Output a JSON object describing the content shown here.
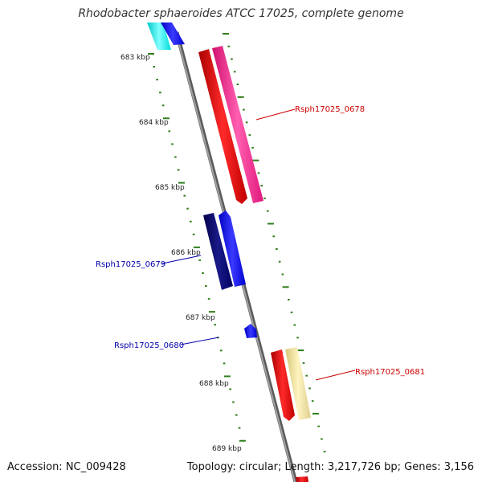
{
  "header": {
    "title": "Rhodobacter sphaeroides ATCC 17025, complete genome"
  },
  "footer": {
    "accession": "Accession: NC_009428",
    "summary": "Topology: circular; Length: 3,217,726 bp; Genes: 3,156"
  },
  "ruler": {
    "tick_labels": [
      "683 kbp",
      "684 kbp",
      "685 kbp",
      "686 kbp",
      "687 kbp",
      "688 kbp",
      "689 kbp"
    ]
  },
  "genes": [
    {
      "label": "Rsph17025_0678",
      "color": "#cc0000"
    },
    {
      "label": "Rsph17025_0679",
      "color": "#0000aa"
    },
    {
      "label": "Rsph17025_0680",
      "color": "#0000aa"
    },
    {
      "label": "Rsph17025_0681",
      "color": "#cc0000"
    }
  ],
  "colors": {
    "backbone": "#808080",
    "tick": "#2e7d1a",
    "cds_forward": "#ff0000",
    "gene_forward": "#ff1493",
    "cds_reverse": "#000080",
    "gene_reverse": "#0000ff",
    "cyan_feature": "#00ffff",
    "yellow_feature": "#f5e6a0"
  }
}
